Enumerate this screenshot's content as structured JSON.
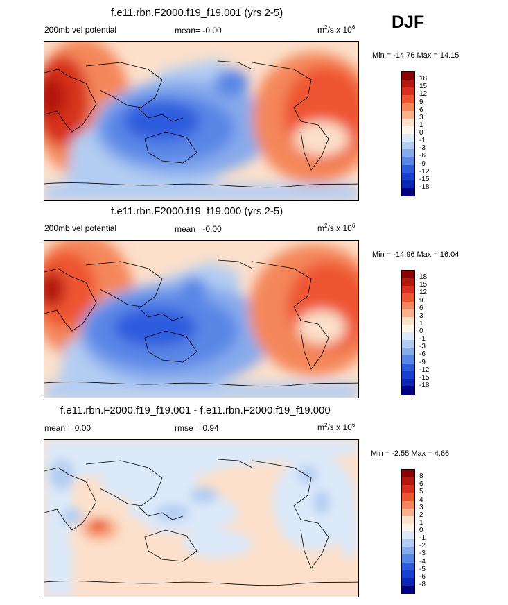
{
  "panels": [
    {
      "title": "f.e11.rbn.F2000.f19_f19.001 (yrs 2-5)",
      "left_label": "200mb vel potential",
      "mid_label": "mean=  -0.00",
      "units": "m",
      "units_sup1": "2",
      "units_mid": "/s x 10",
      "units_sup2": "6",
      "minmax": "Min = -14.76 Max =  14.15",
      "colorbar": {
        "colors": [
          "#8b0000",
          "#b2180e",
          "#d7301f",
          "#ee5430",
          "#f4875a",
          "#f8b28c",
          "#fce0cb",
          "#fff5ea",
          "#dce9f9",
          "#b3cdf2",
          "#86aaec",
          "#5a86e6",
          "#2e5bde",
          "#1a3fcf",
          "#0b26b4",
          "#000080"
        ],
        "ticks": [
          "18",
          "15",
          "12",
          "9",
          "6",
          "3",
          "1",
          "0",
          "-1",
          "-3",
          "-6",
          "-9",
          "-12",
          "-15",
          "-18"
        ]
      }
    },
    {
      "title": "f.e11.rbn.F2000.f19_f19.000 (yrs 2-5)",
      "left_label": "200mb vel potential",
      "mid_label": "mean=  -0.00",
      "units": "m",
      "units_sup1": "2",
      "units_mid": "/s x 10",
      "units_sup2": "6",
      "minmax": "Min = -14.96 Max =  16.04",
      "colorbar": {
        "colors": [
          "#8b0000",
          "#b2180e",
          "#d7301f",
          "#ee5430",
          "#f4875a",
          "#f8b28c",
          "#fce0cb",
          "#fff5ea",
          "#dce9f9",
          "#b3cdf2",
          "#86aaec",
          "#5a86e6",
          "#2e5bde",
          "#1a3fcf",
          "#0b26b4",
          "#000080"
        ],
        "ticks": [
          "18",
          "15",
          "12",
          "9",
          "6",
          "3",
          "1",
          "0",
          "-1",
          "-3",
          "-6",
          "-9",
          "-12",
          "-15",
          "-18"
        ]
      }
    },
    {
      "title": "f.e11.rbn.F2000.f19_f19.001 - f.e11.rbn.F2000.f19_f19.000",
      "left_label": "mean =  0.00",
      "mid_label": "rmse =  0.94",
      "units": "m",
      "units_sup1": "2",
      "units_mid": "/s x 10",
      "units_sup2": "6",
      "minmax": "Min =  -2.55 Max =  4.66",
      "colorbar": {
        "colors": [
          "#8b0000",
          "#b2180e",
          "#d7301f",
          "#ee5430",
          "#f4875a",
          "#f8b28c",
          "#fce0cb",
          "#fff5ea",
          "#dce9f9",
          "#b3cdf2",
          "#86aaec",
          "#5a86e6",
          "#2e5bde",
          "#1a3fcf",
          "#0b26b4",
          "#000080"
        ],
        "ticks": [
          "8",
          "6",
          "5",
          "4",
          "3",
          "2",
          "1",
          "0",
          "-1",
          "-2",
          "-3",
          "-4",
          "-5",
          "-6",
          "-8"
        ]
      }
    }
  ],
  "season": "DJF"
}
